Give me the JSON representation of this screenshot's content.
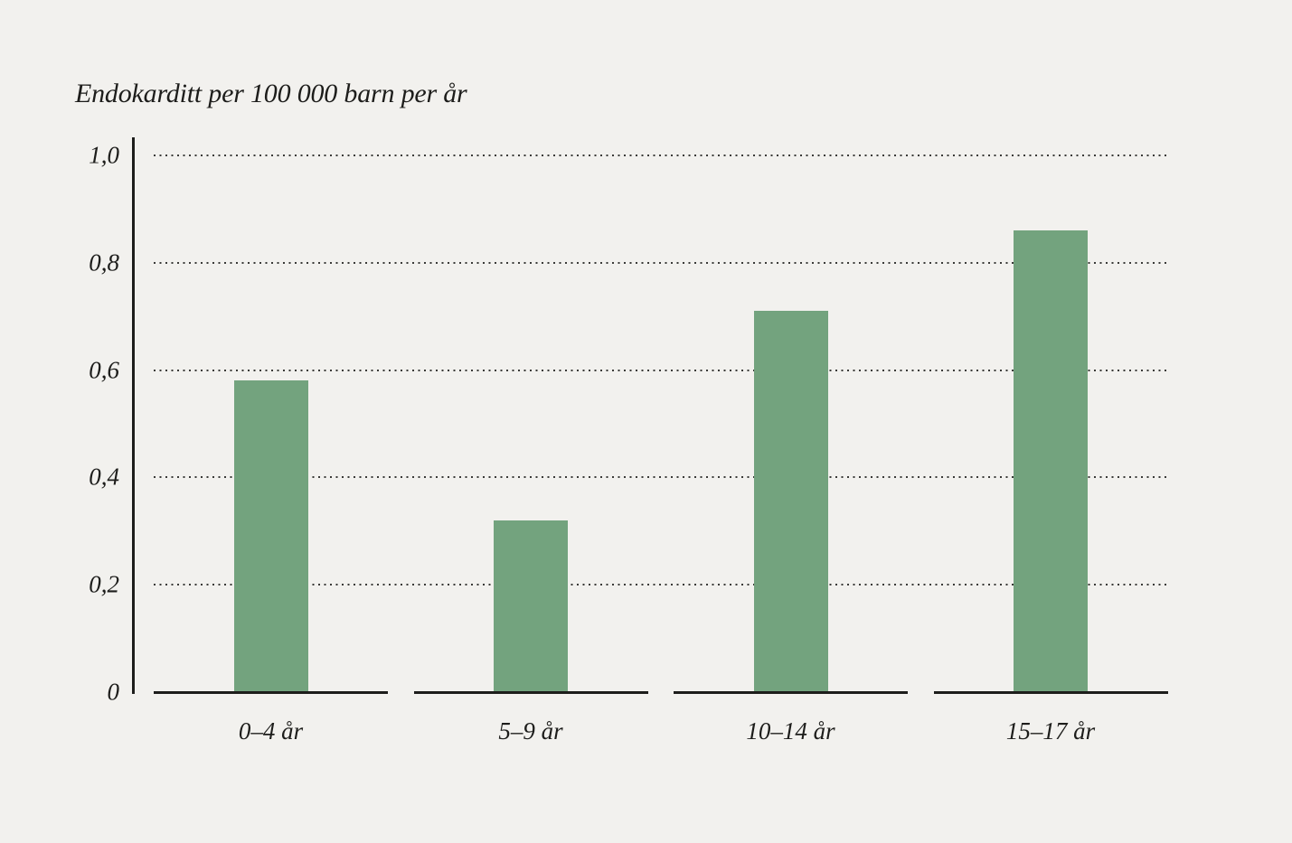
{
  "chart_data": {
    "type": "bar",
    "title": "Endokarditt per 100 000 barn per år",
    "categories": [
      "0–4 år",
      "5–9 år",
      "10–14 år",
      "15–17 år"
    ],
    "values": [
      0.58,
      0.32,
      0.71,
      0.86
    ],
    "xlabel": "",
    "ylabel": "Endokarditt per 100 000 barn per år",
    "ylim": [
      0,
      1.0
    ],
    "yticks": [
      {
        "value": 0,
        "label": "0"
      },
      {
        "value": 0.2,
        "label": "0,2"
      },
      {
        "value": 0.4,
        "label": "0,4"
      },
      {
        "value": 0.6,
        "label": "0,6"
      },
      {
        "value": 0.8,
        "label": "0,8"
      },
      {
        "value": 1.0,
        "label": "1,0"
      }
    ],
    "grid": "horizontal-dotted",
    "legend": "none",
    "colors": {
      "bar": "#73a37e",
      "background": "#f2f1ee",
      "text": "#1d1d1b",
      "axis": "#1d1d1b",
      "gridline": "#3a3a38"
    }
  }
}
